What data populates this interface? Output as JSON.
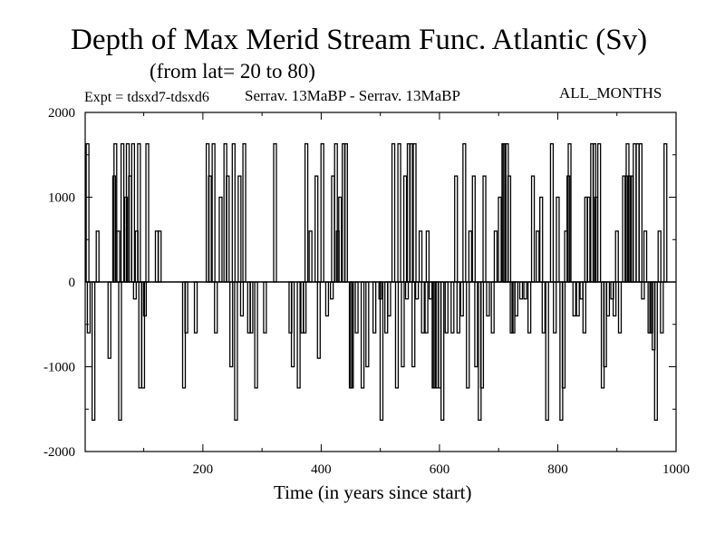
{
  "chart_data": {
    "type": "bar",
    "title": "Depth of Max Merid Stream Func. Atlantic (Sv)",
    "subtitle": "(from lat= 20 to 80)",
    "expt_label": "Expt = tdsxd7-tdsxd6",
    "case_label": "Serrav.   13MaBP - Serrav.   13MaBP",
    "period_label": "ALL_MONTHS",
    "xlabel": "Time (in years since start)",
    "ylabel": "",
    "xlim": [
      1,
      1000
    ],
    "ylim": [
      -2000,
      2000
    ],
    "x_ticks": [
      200,
      400,
      600,
      800,
      1000
    ],
    "y_ticks": [
      2000,
      1000,
      0,
      -1000,
      -2000
    ],
    "grid": false,
    "series": [
      {
        "values": [
          [
            5,
            1630
          ],
          [
            7,
            -600
          ],
          [
            15,
            -1630
          ],
          [
            22,
            600
          ],
          [
            42,
            -900
          ],
          [
            50,
            1250
          ],
          [
            52,
            1630
          ],
          [
            57,
            600
          ],
          [
            60,
            -1630
          ],
          [
            64,
            1630
          ],
          [
            70,
            1000
          ],
          [
            73,
            1630
          ],
          [
            77,
            1250
          ],
          [
            82,
            1630
          ],
          [
            85,
            -200
          ],
          [
            88,
            600
          ],
          [
            92,
            1630
          ],
          [
            94,
            -1250
          ],
          [
            99,
            -1250
          ],
          [
            102,
            -400
          ],
          [
            106,
            1630
          ],
          [
            122,
            600
          ],
          [
            127,
            600
          ],
          [
            168,
            -1250
          ],
          [
            172,
            -600
          ],
          [
            188,
            -600
          ],
          [
            208,
            1630
          ],
          [
            212,
            1250
          ],
          [
            218,
            1630
          ],
          [
            222,
            -600
          ],
          [
            230,
            1000
          ],
          [
            238,
            1630
          ],
          [
            242,
            1250
          ],
          [
            248,
            -1000
          ],
          [
            252,
            1630
          ],
          [
            256,
            -1630
          ],
          [
            262,
            1250
          ],
          [
            266,
            -400
          ],
          [
            270,
            1630
          ],
          [
            278,
            -600
          ],
          [
            282,
            -600
          ],
          [
            290,
            -1250
          ],
          [
            305,
            -600
          ],
          [
            322,
            1630
          ],
          [
            348,
            -600
          ],
          [
            352,
            -1000
          ],
          [
            362,
            -1250
          ],
          [
            368,
            -600
          ],
          [
            372,
            -600
          ],
          [
            375,
            1630
          ],
          [
            382,
            600
          ],
          [
            392,
            1250
          ],
          [
            396,
            -900
          ],
          [
            402,
            1630
          ],
          [
            410,
            -400
          ],
          [
            418,
            -200
          ],
          [
            420,
            1250
          ],
          [
            425,
            1630
          ],
          [
            428,
            600
          ],
          [
            432,
            1000
          ],
          [
            438,
            1630
          ],
          [
            442,
            1630
          ],
          [
            450,
            -1250
          ],
          [
            452,
            -1250
          ],
          [
            460,
            -600
          ],
          [
            470,
            -1250
          ],
          [
            478,
            -1000
          ],
          [
            490,
            -600
          ],
          [
            500,
            -200
          ],
          [
            502,
            -1630
          ],
          [
            510,
            -600
          ],
          [
            515,
            -400
          ],
          [
            522,
            1630
          ],
          [
            528,
            -1250
          ],
          [
            532,
            1630
          ],
          [
            538,
            -1000
          ],
          [
            542,
            1250
          ],
          [
            545,
            -200
          ],
          [
            548,
            1630
          ],
          [
            552,
            1630
          ],
          [
            556,
            -1000
          ],
          [
            558,
            1630
          ],
          [
            562,
            -200
          ],
          [
            568,
            600
          ],
          [
            572,
            -600
          ],
          [
            578,
            -600
          ],
          [
            580,
            600
          ],
          [
            585,
            -200
          ],
          [
            590,
            -1250
          ],
          [
            592,
            -1250
          ],
          [
            596,
            -1250
          ],
          [
            600,
            -1250
          ],
          [
            605,
            -1630
          ],
          [
            612,
            -600
          ],
          [
            622,
            -600
          ],
          [
            628,
            1250
          ],
          [
            632,
            -600
          ],
          [
            638,
            -400
          ],
          [
            642,
            1630
          ],
          [
            648,
            -1250
          ],
          [
            652,
            600
          ],
          [
            658,
            1250
          ],
          [
            662,
            -1000
          ],
          [
            668,
            -1630
          ],
          [
            672,
            -1250
          ],
          [
            676,
            1250
          ],
          [
            682,
            -400
          ],
          [
            690,
            -600
          ],
          [
            695,
            600
          ],
          [
            702,
            1000
          ],
          [
            708,
            1630
          ],
          [
            710,
            1630
          ],
          [
            714,
            1630
          ],
          [
            718,
            1250
          ],
          [
            722,
            -600
          ],
          [
            725,
            -600
          ],
          [
            730,
            -400
          ],
          [
            738,
            -200
          ],
          [
            745,
            -200
          ],
          [
            752,
            -600
          ],
          [
            758,
            1250
          ],
          [
            766,
            600
          ],
          [
            772,
            1000
          ],
          [
            776,
            -600
          ],
          [
            782,
            -1630
          ],
          [
            790,
            1630
          ],
          [
            795,
            -600
          ],
          [
            800,
            1000
          ],
          [
            806,
            -1630
          ],
          [
            810,
            -1250
          ],
          [
            814,
            600
          ],
          [
            818,
            1250
          ],
          [
            820,
            1630
          ],
          [
            828,
            -400
          ],
          [
            834,
            -400
          ],
          [
            840,
            -200
          ],
          [
            845,
            -600
          ],
          [
            848,
            1000
          ],
          [
            852,
            1000
          ],
          [
            858,
            1630
          ],
          [
            862,
            1630
          ],
          [
            865,
            1000
          ],
          [
            870,
            1630
          ],
          [
            876,
            -1250
          ],
          [
            880,
            -1000
          ],
          [
            885,
            -400
          ],
          [
            892,
            -200
          ],
          [
            896,
            -400
          ],
          [
            900,
            600
          ],
          [
            905,
            -600
          ],
          [
            912,
            1250
          ],
          [
            916,
            1250
          ],
          [
            918,
            1630
          ],
          [
            922,
            1250
          ],
          [
            925,
            1250
          ],
          [
            930,
            1630
          ],
          [
            935,
            1630
          ],
          [
            940,
            1630
          ],
          [
            944,
            -200
          ],
          [
            948,
            600
          ],
          [
            955,
            -600
          ],
          [
            958,
            -600
          ],
          [
            962,
            -800
          ],
          [
            966,
            -1630
          ],
          [
            972,
            600
          ],
          [
            976,
            -600
          ],
          [
            982,
            1630
          ]
        ]
      }
    ]
  }
}
